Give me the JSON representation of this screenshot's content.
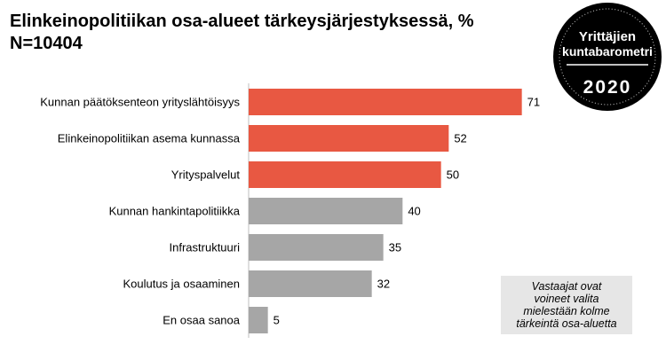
{
  "chart_data": {
    "type": "bar",
    "orientation": "horizontal",
    "title": "Elinkeinopolitiikan osa-alueet tärkeysjärjestyksessä, %",
    "subtitle": "N=10404",
    "categories": [
      "Kunnan päätöksenteon yrityslähtöisyys",
      "Elinkeinopolitiikan asema kunnassa",
      "Yrityspalvelut",
      "Kunnan hankintapolitiikka",
      "Infrastruktuuri",
      "Koulutus ja osaaminen",
      "En osaa sanoa"
    ],
    "values": [
      71,
      52,
      50,
      40,
      35,
      32,
      5
    ],
    "bar_colors": [
      "#e85842",
      "#e85842",
      "#e85842",
      "#a6a6a6",
      "#a6a6a6",
      "#a6a6a6",
      "#a6a6a6"
    ],
    "xlim": [
      0,
      75
    ],
    "grid": false,
    "legend": "none"
  },
  "note": "Vastaajat ovat\nvoineet valita\nmielestään kolme\ntärkeintä osa-aluetta",
  "badge": {
    "line1": "Yrittäjien",
    "line2": "kuntabarometri",
    "year": "2020",
    "background": "#000000",
    "text_color": "#ffffff"
  }
}
